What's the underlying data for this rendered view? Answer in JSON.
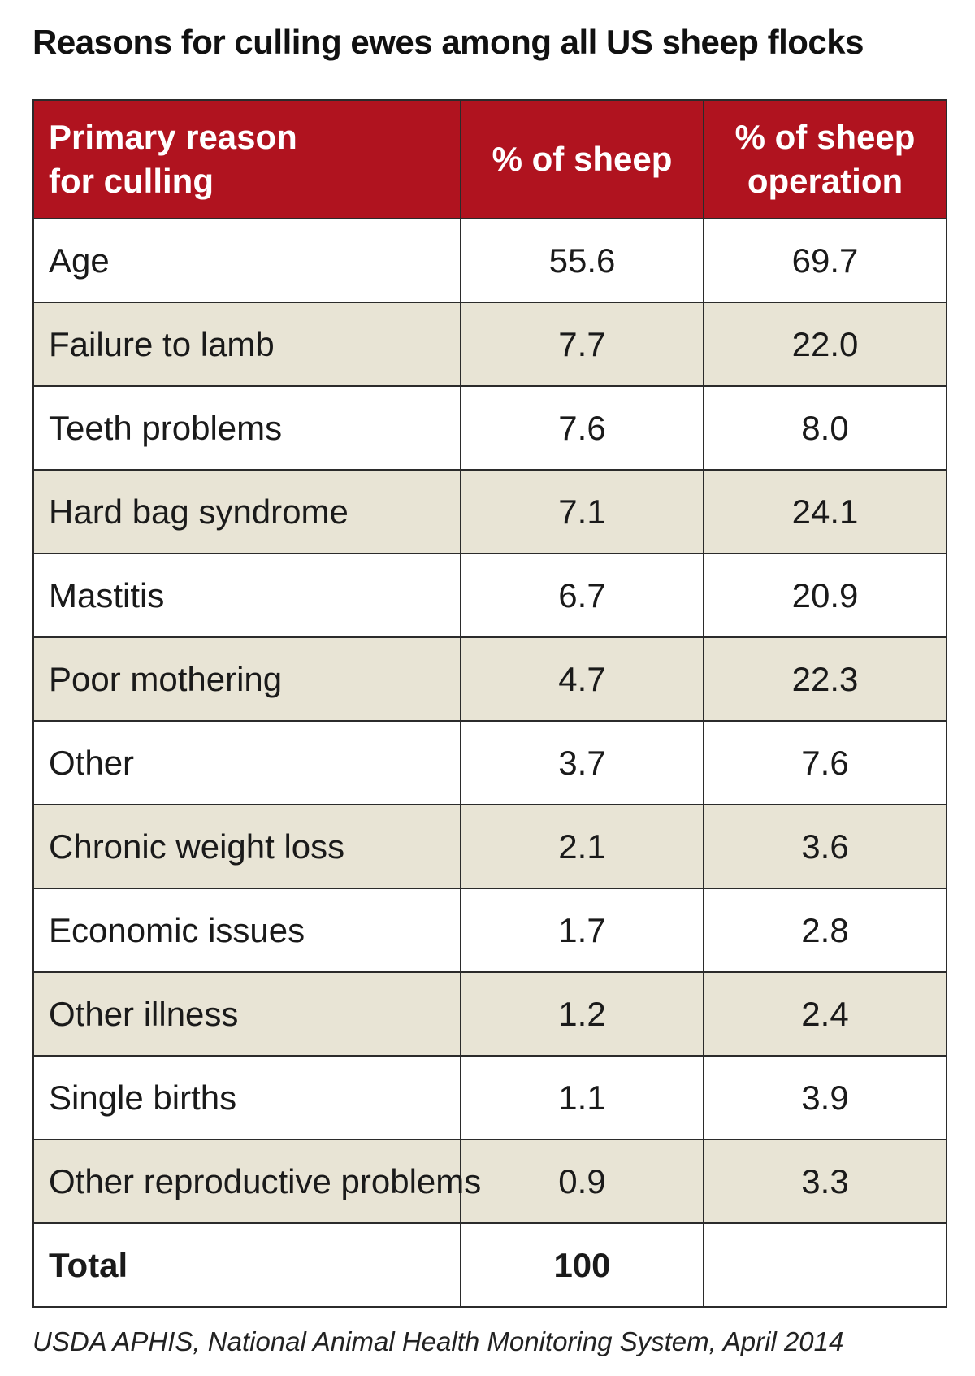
{
  "title": "Reasons for culling ewes among all US sheep flocks",
  "source": "USDA APHIS, National Animal Health Monitoring System, April 2014",
  "colors": {
    "header_bg": "#b0131f",
    "shaded_row_bg": "#e8e4d5",
    "plain_row_bg": "#ffffff"
  },
  "chart_data": {
    "type": "table",
    "title": "Reasons for culling ewes among all US sheep flocks",
    "columns": [
      "Primary reason for culling",
      "% of sheep",
      "% of sheep operation"
    ],
    "header_lines": [
      [
        "Primary reason",
        "for culling"
      ],
      [
        "% of sheep"
      ],
      [
        "% of sheep",
        "operation"
      ]
    ],
    "rows": [
      {
        "reason": "Age",
        "pct_sheep": "55.6",
        "pct_operation": "69.7"
      },
      {
        "reason": "Failure to lamb",
        "pct_sheep": "7.7",
        "pct_operation": "22.0"
      },
      {
        "reason": "Teeth problems",
        "pct_sheep": "7.6",
        "pct_operation": "8.0"
      },
      {
        "reason": "Hard bag syndrome",
        "pct_sheep": "7.1",
        "pct_operation": "24.1"
      },
      {
        "reason": "Mastitis",
        "pct_sheep": "6.7",
        "pct_operation": "20.9"
      },
      {
        "reason": "Poor mothering",
        "pct_sheep": "4.7",
        "pct_operation": "22.3"
      },
      {
        "reason": "Other",
        "pct_sheep": "3.7",
        "pct_operation": "7.6"
      },
      {
        "reason": "Chronic weight loss",
        "pct_sheep": "2.1",
        "pct_operation": "3.6"
      },
      {
        "reason": "Economic issues",
        "pct_sheep": "1.7",
        "pct_operation": "2.8"
      },
      {
        "reason": "Other illness",
        "pct_sheep": "1.2",
        "pct_operation": "2.4"
      },
      {
        "reason": "Single births",
        "pct_sheep": "1.1",
        "pct_operation": "3.9"
      },
      {
        "reason": "Other reproductive problems",
        "pct_sheep": "0.9",
        "pct_operation": "3.3"
      }
    ],
    "total": {
      "reason": "Total",
      "pct_sheep": "100",
      "pct_operation": ""
    }
  }
}
